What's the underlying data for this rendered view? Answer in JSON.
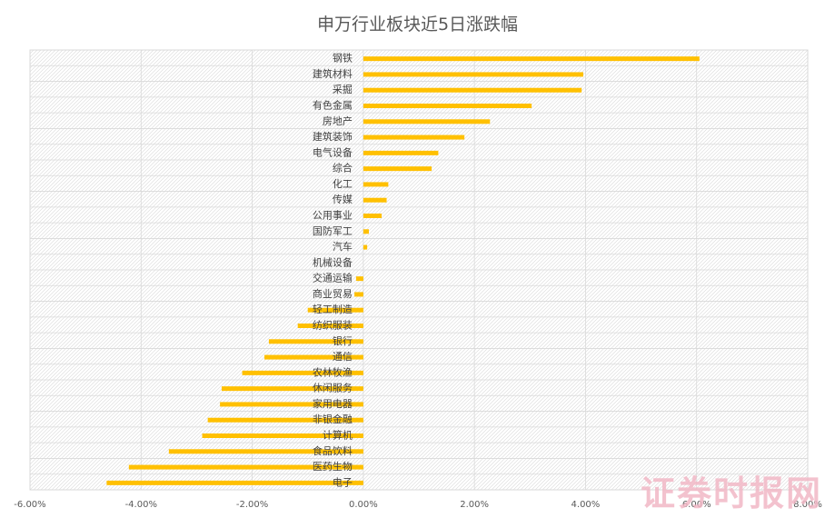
{
  "chart_data": {
    "type": "bar",
    "orientation": "horizontal",
    "title": "申万行业板块近5日涨跌幅",
    "xlabel": "",
    "ylabel": "",
    "xlim": [
      -0.06,
      0.08
    ],
    "x_ticks": [
      -0.06,
      -0.04,
      -0.02,
      0.0,
      0.02,
      0.04,
      0.06,
      0.08
    ],
    "x_tick_labels": [
      "-6.00%",
      "-4.00%",
      "-2.00%",
      "0.00%",
      "2.00%",
      "4.00%",
      "6.00%",
      "8.00%"
    ],
    "grid": true,
    "bar_color": "#FFC000",
    "categories": [
      "钢铁",
      "建筑材料",
      "采掘",
      "有色金属",
      "房地产",
      "建筑装饰",
      "电气设备",
      "综合",
      "化工",
      "传媒",
      "公用事业",
      "国防军工",
      "汽车",
      "机械设备",
      "交通运输",
      "商业贸易",
      "轻工制造",
      "纺织服装",
      "银行",
      "通信",
      "农林牧渔",
      "休闲服务",
      "家用电器",
      "非银金融",
      "计算机",
      "食品饮料",
      "医药生物",
      "电子"
    ],
    "values": [
      0.0605,
      0.0396,
      0.0393,
      0.0303,
      0.0228,
      0.0182,
      0.0135,
      0.0123,
      0.0045,
      0.0042,
      0.0033,
      0.001,
      0.0007,
      0.0,
      -0.0013,
      -0.0016,
      -0.01,
      -0.0118,
      -0.017,
      -0.0178,
      -0.0218,
      -0.0255,
      -0.0258,
      -0.028,
      -0.029,
      -0.035,
      -0.0422,
      -0.0462
    ]
  },
  "watermark": "证券时报网"
}
